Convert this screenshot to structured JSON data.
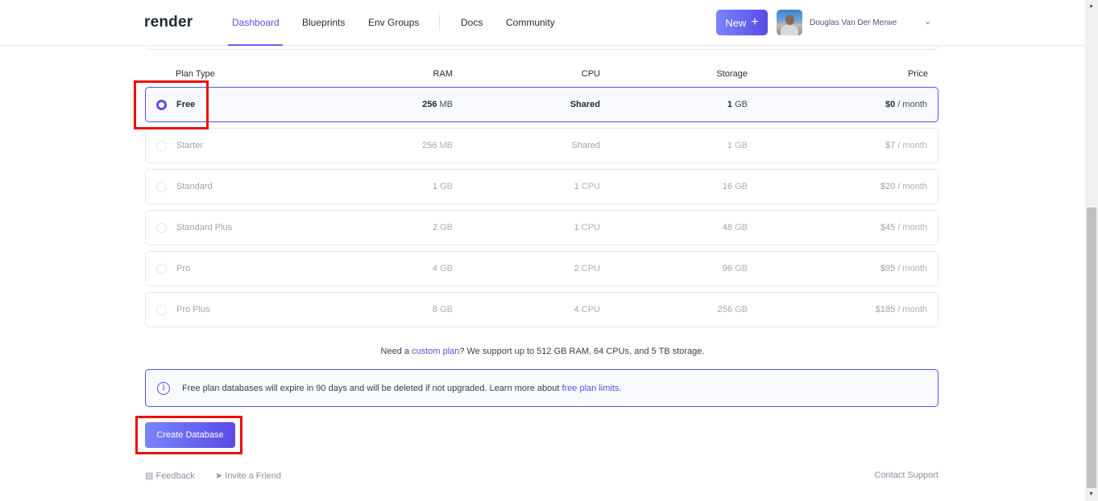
{
  "header": {
    "logo": "render",
    "nav": [
      {
        "label": "Dashboard",
        "active": true
      },
      {
        "label": "Blueprints"
      },
      {
        "label": "Env Groups"
      },
      {
        "label": "Docs"
      },
      {
        "label": "Community"
      }
    ],
    "new_button": "New",
    "user_name": "Douglas Van Der Merwe"
  },
  "table": {
    "headers": [
      "Plan Type",
      "RAM",
      "CPU",
      "Storage",
      "Price"
    ],
    "rows": [
      {
        "name": "Free",
        "ram": "256",
        "ram_unit": "MB",
        "cpu": "Shared",
        "cpu_unit": "",
        "storage": "1",
        "storage_unit": "GB",
        "price": "$0",
        "price_unit": "/ month",
        "selected": true
      },
      {
        "name": "Starter",
        "ram": "256",
        "ram_unit": "MB",
        "cpu": "Shared",
        "cpu_unit": "",
        "storage": "1",
        "storage_unit": "GB",
        "price": "$7",
        "price_unit": "/ month",
        "selected": false
      },
      {
        "name": "Standard",
        "ram": "1",
        "ram_unit": "GB",
        "cpu": "1",
        "cpu_unit": "CPU",
        "storage": "16",
        "storage_unit": "GB",
        "price": "$20",
        "price_unit": "/ month",
        "selected": false
      },
      {
        "name": "Standard Plus",
        "ram": "2",
        "ram_unit": "GB",
        "cpu": "1",
        "cpu_unit": "CPU",
        "storage": "48",
        "storage_unit": "GB",
        "price": "$45",
        "price_unit": "/ month",
        "selected": false
      },
      {
        "name": "Pro",
        "ram": "4",
        "ram_unit": "GB",
        "cpu": "2",
        "cpu_unit": "CPU",
        "storage": "96",
        "storage_unit": "GB",
        "price": "$95",
        "price_unit": "/ month",
        "selected": false
      },
      {
        "name": "Pro Plus",
        "ram": "8",
        "ram_unit": "GB",
        "cpu": "4",
        "cpu_unit": "CPU",
        "storage": "256",
        "storage_unit": "GB",
        "price": "$185",
        "price_unit": "/ month",
        "selected": false
      }
    ]
  },
  "custom_note": {
    "before": "Need a ",
    "link": "custom plan",
    "after": "? We support up to 512 GB RAM, 64 CPUs, and 5 TB storage."
  },
  "info": {
    "text": "Free plan databases will expire in 90 days and will be deleted if not upgraded. Learn more about ",
    "link": "free plan limits",
    "after": "."
  },
  "create_button": "Create Database",
  "footer": {
    "feedback": "Feedback",
    "invite": "Invite a Friend",
    "support": "Contact Support"
  },
  "colors": {
    "accent": "#5b4fe0",
    "highlight": "#ee0b0b"
  }
}
